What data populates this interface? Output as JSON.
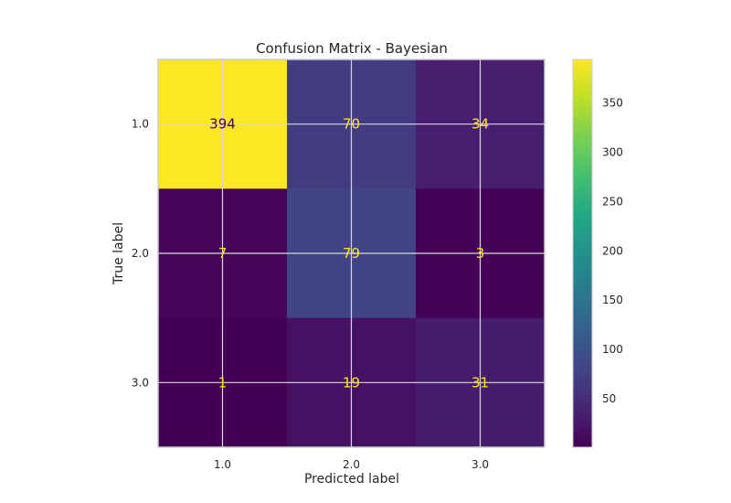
{
  "chart_data": {
    "type": "heatmap",
    "title": "Confusion Matrix - Bayesian",
    "xlabel": "Predicted label",
    "ylabel": "True label",
    "x_categories": [
      "1.0",
      "2.0",
      "3.0"
    ],
    "y_categories": [
      "1.0",
      "2.0",
      "3.0"
    ],
    "values": [
      [
        394,
        70,
        34
      ],
      [
        7,
        79,
        3
      ],
      [
        1,
        19,
        31
      ]
    ],
    "colorbar": {
      "colormap": "viridis",
      "range": [
        1,
        394
      ],
      "ticks": [
        50,
        100,
        150,
        200,
        250,
        300,
        350
      ]
    },
    "grid": true
  }
}
